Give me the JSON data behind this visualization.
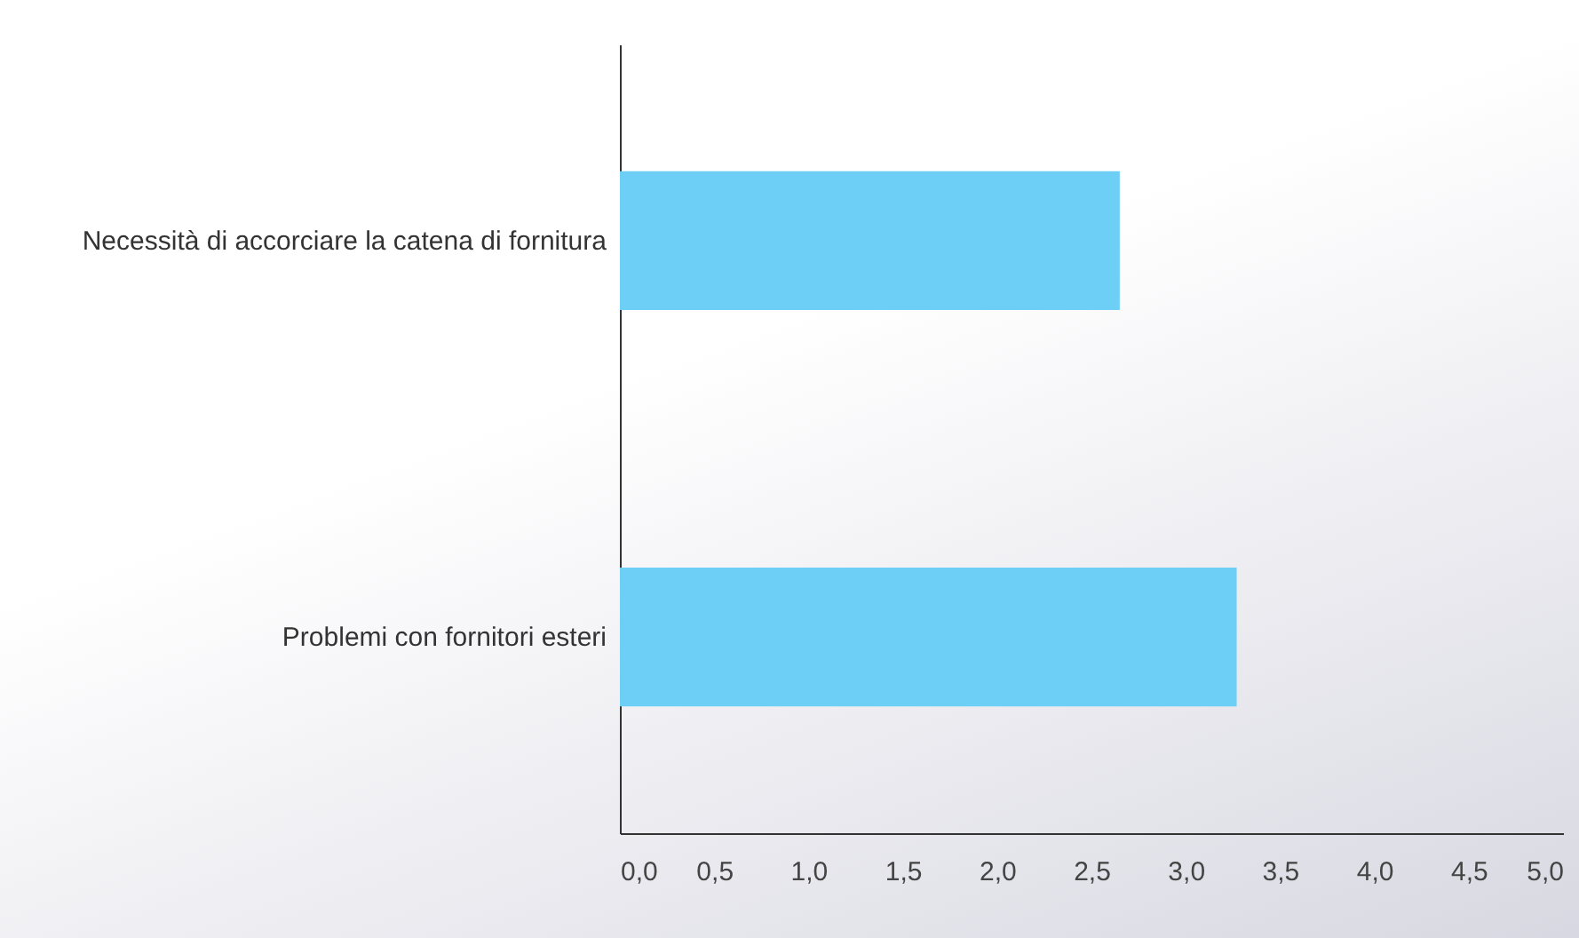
{
  "chart_data": {
    "type": "bar",
    "orientation": "horizontal",
    "categories": [
      "Necessità di accorciare la catena di fornitura",
      "Problemi con fornitori esteri"
    ],
    "values": [
      2.65,
      3.27
    ],
    "color": "#6dcff6",
    "xlim": [
      0,
      5
    ],
    "xticks": [
      {
        "value": 0,
        "label": "0,0"
      },
      {
        "value": 0.5,
        "label": "0,5"
      },
      {
        "value": 1,
        "label": "1,0"
      },
      {
        "value": 1.5,
        "label": "1,5"
      },
      {
        "value": 2,
        "label": "2,0"
      },
      {
        "value": 2.5,
        "label": "2,5"
      },
      {
        "value": 3,
        "label": "3,0"
      },
      {
        "value": 3.5,
        "label": "3,5"
      },
      {
        "value": 4,
        "label": "4,0"
      },
      {
        "value": 4.5,
        "label": "4,5"
      },
      {
        "value": 5,
        "label": "5,0"
      }
    ],
    "grid": false
  }
}
